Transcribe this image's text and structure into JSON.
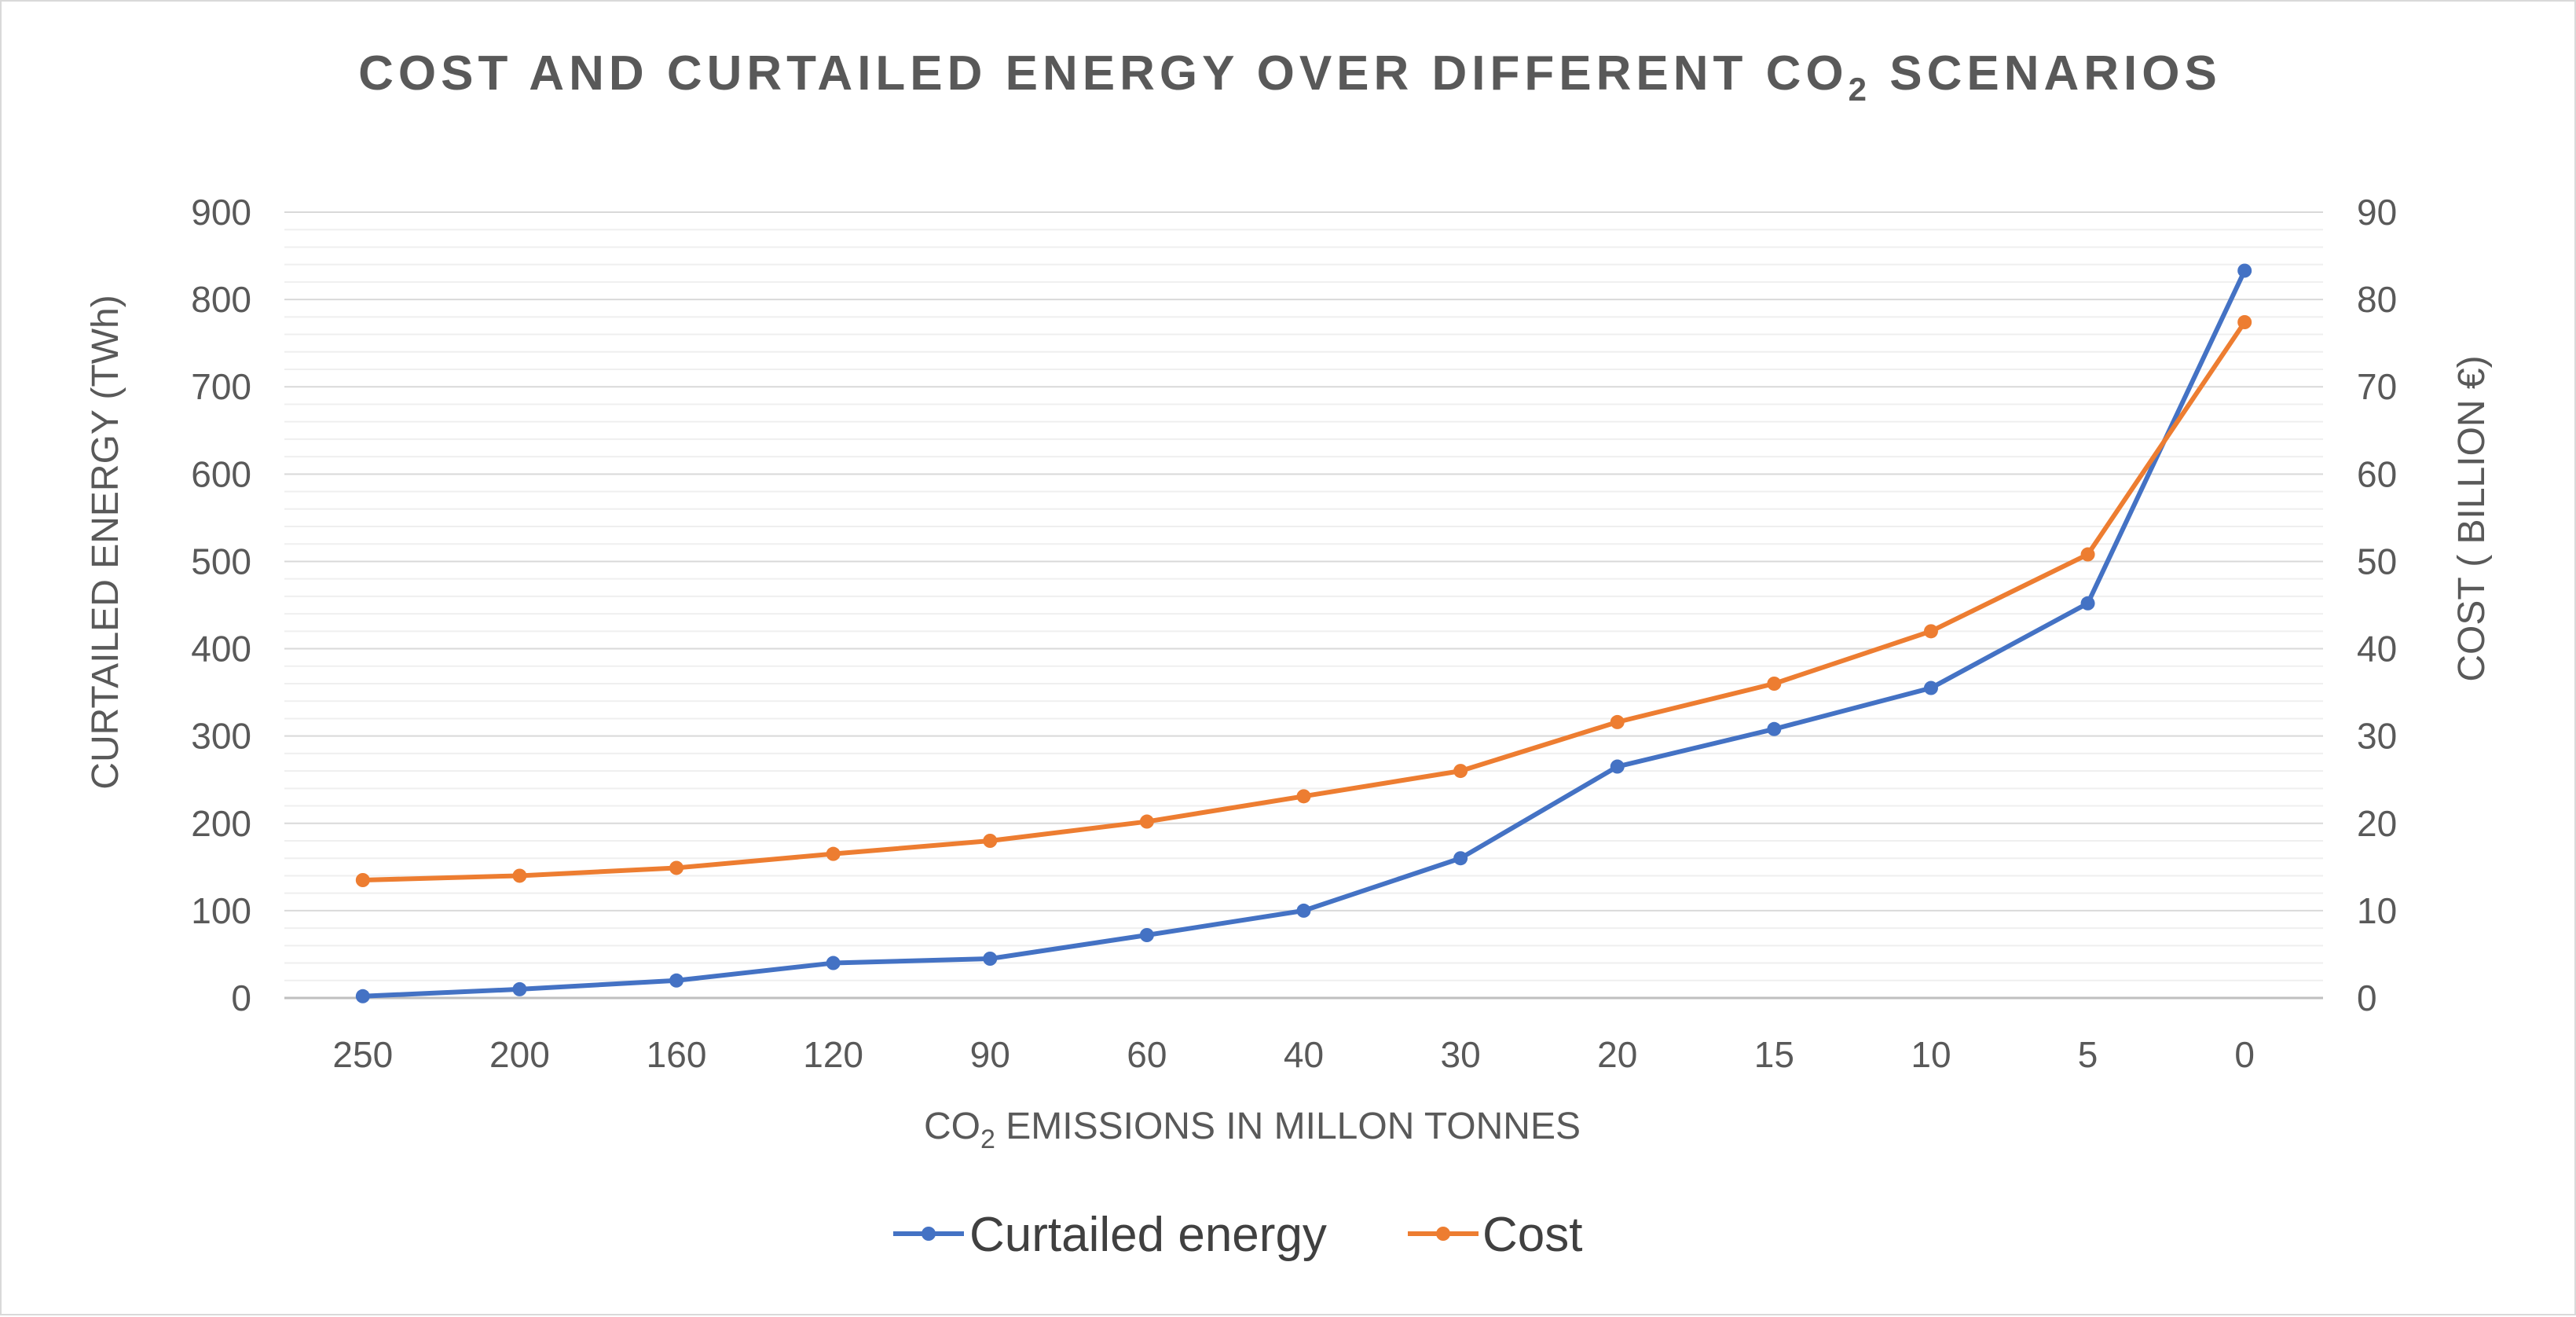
{
  "chart_data": {
    "type": "line",
    "title": {
      "main": "COST AND CURTAILED ENERGY OVER DIFFERENT CO",
      "sub": "2",
      "suffix": " SCENARIOS"
    },
    "categories": [
      "250",
      "200",
      "160",
      "120",
      "90",
      "60",
      "40",
      "30",
      "20",
      "15",
      "10",
      "5",
      "0"
    ],
    "xlabel": {
      "main": "CO",
      "sub": "2",
      "suffix": " EMISSIONS IN MILLON TONNES"
    },
    "ylabel": "CURTAILED ENERGY (TWh)",
    "y2label": "COST ( BILLION €)",
    "ylim": [
      0,
      900
    ],
    "y2lim": [
      0,
      90
    ],
    "yticks": [
      "0",
      "100",
      "200",
      "300",
      "400",
      "500",
      "600",
      "700",
      "800",
      "900"
    ],
    "y2ticks": [
      "0",
      "10",
      "20",
      "30",
      "40",
      "50",
      "60",
      "70",
      "80",
      "90"
    ],
    "grid": true,
    "legend_position": "bottom",
    "series": [
      {
        "name": "Curtailed energy",
        "axis": "left",
        "color": "#4472c4",
        "values": [
          2,
          10,
          20,
          40,
          45,
          72,
          100,
          160,
          265,
          308,
          355,
          452,
          833
        ]
      },
      {
        "name": "Cost",
        "axis": "right",
        "color": "#ed7d31",
        "values": [
          13.5,
          14,
          14.9,
          16.5,
          18,
          20.2,
          23.1,
          26,
          31.6,
          36,
          42,
          50.8,
          77.4
        ]
      }
    ]
  }
}
